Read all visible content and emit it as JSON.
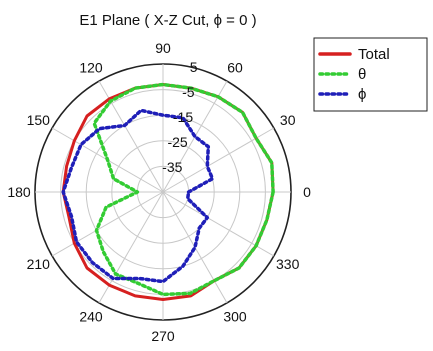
{
  "chart_data": {
    "type": "polar",
    "title": "E1 Plane ( X-Z Cut, ϕ = 0 )",
    "angle_unit": "deg",
    "angle_ticks": [
      0,
      30,
      60,
      90,
      120,
      150,
      180,
      210,
      240,
      270,
      300,
      330
    ],
    "angle_tick_labels": [
      "0",
      "30",
      "60",
      "90",
      "120",
      "150",
      "180",
      "210",
      "240",
      "270",
      "300",
      "330"
    ],
    "radial_ticks": [
      5,
      -5,
      -15,
      -25,
      -35
    ],
    "radial_tick_labels": [
      "5",
      "-5",
      "-15",
      "-25",
      "-35"
    ],
    "rlim": [
      -45,
      5
    ],
    "grid": true,
    "legend": "top-right",
    "colors": {
      "Total": "#d62020",
      "theta": "#33cc33",
      "phi": "#1f1fb8"
    },
    "angles": [
      0,
      15,
      30,
      45,
      60,
      75,
      90,
      105,
      120,
      135,
      150,
      165,
      180,
      195,
      210,
      225,
      240,
      255,
      270,
      285,
      300,
      315,
      330,
      345
    ],
    "series": [
      {
        "name": "Total",
        "style": "solid",
        "values": [
          -2,
          -1,
          -3,
          -1,
          -2,
          -3,
          -3,
          -3,
          -3,
          -3,
          -5,
          -6,
          -6,
          -7,
          -5,
          -3,
          -3,
          -3,
          -3,
          -3,
          -5,
          -3,
          -3,
          -3
        ]
      },
      {
        "name": "θ",
        "style": "dotted",
        "values": [
          -2,
          -1,
          -3,
          -1,
          -2,
          -3,
          -3,
          -3,
          -4,
          -7,
          -20,
          -25,
          -35,
          -22,
          -15,
          -12,
          -8,
          -8,
          -5,
          -4,
          -5,
          -3,
          -3,
          -3
        ]
      },
      {
        "name": "ϕ",
        "style": "dotted",
        "values": [
          -35,
          -25,
          -25,
          -20,
          -20,
          -15,
          -15,
          -12,
          -15,
          -10,
          -8,
          -8,
          -6,
          -8,
          -6,
          -6,
          -6,
          -10,
          -10,
          -15,
          -20,
          -25,
          -25,
          -35
        ]
      }
    ]
  }
}
